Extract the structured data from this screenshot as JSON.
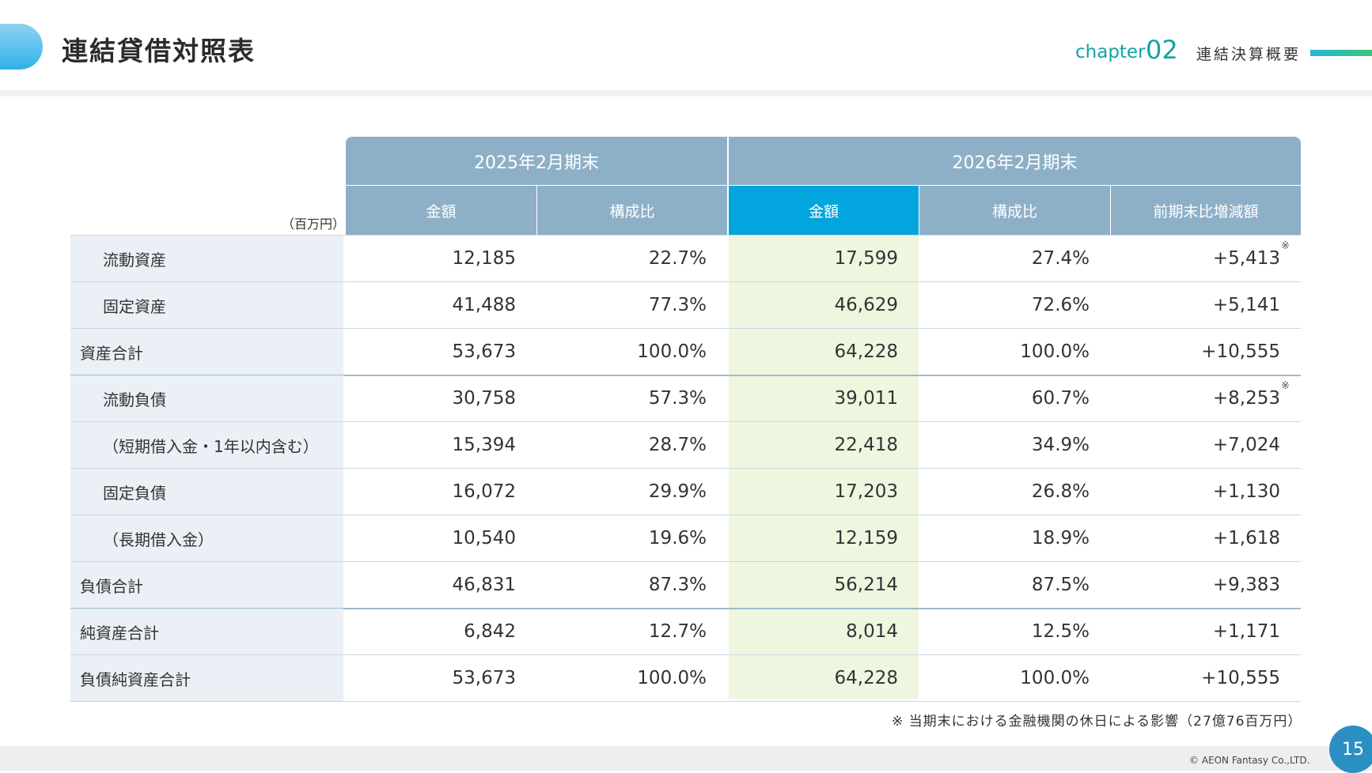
{
  "header": {
    "title": "連結貸借対照表",
    "chapter_word": "chapter",
    "chapter_number": "02",
    "chapter_name": "連結決算概要"
  },
  "table": {
    "unit": "（百万円）",
    "groups": [
      "2025年2月期末",
      "2026年2月期末"
    ],
    "columns": [
      "金額",
      "構成比",
      "金額",
      "構成比",
      "前期末比増減額"
    ],
    "rows": [
      {
        "label": "流動資産",
        "values": [
          "12,185",
          "22.7%",
          "17,599",
          "27.4%",
          "+5,413"
        ],
        "note": "※"
      },
      {
        "label": "固定資産",
        "values": [
          "41,488",
          "77.3%",
          "46,629",
          "72.6%",
          "+5,141"
        ],
        "note": ""
      },
      {
        "label": "資産合計",
        "values": [
          "53,673",
          "100.0%",
          "64,228",
          "100.0%",
          "+10,555"
        ],
        "note": ""
      },
      {
        "label": "流動負債",
        "values": [
          "30,758",
          "57.3%",
          "39,011",
          "60.7%",
          "+8,253"
        ],
        "note": "※"
      },
      {
        "label": "（短期借入金・1年以内含む）",
        "values": [
          "15,394",
          "28.7%",
          "22,418",
          "34.9%",
          "+7,024"
        ],
        "note": ""
      },
      {
        "label": "固定負債",
        "values": [
          "16,072",
          "29.9%",
          "17,203",
          "26.8%",
          "+1,130"
        ],
        "note": ""
      },
      {
        "label": "（長期借入金）",
        "values": [
          "10,540",
          "19.6%",
          "12,159",
          "18.9%",
          "+1,618"
        ],
        "note": ""
      },
      {
        "label": "負債合計",
        "values": [
          "46,831",
          "87.3%",
          "56,214",
          "87.5%",
          "+9,383"
        ],
        "note": ""
      },
      {
        "label": "純資産合計",
        "values": [
          "6,842",
          "12.7%",
          "8,014",
          "12.5%",
          "+1,171"
        ],
        "note": ""
      },
      {
        "label": "負債純資産合計",
        "values": [
          "53,673",
          "100.0%",
          "64,228",
          "100.0%",
          "+10,555"
        ],
        "note": ""
      }
    ],
    "highlight_color": "#03a5df",
    "header_color": "#8eb0c7"
  },
  "footnote": "※ 当期末における金融機関の休日による影響（27億76百万円）",
  "footer": {
    "copyright": "© AEON Fantasy Co.,LTD.",
    "page_number": "15"
  }
}
